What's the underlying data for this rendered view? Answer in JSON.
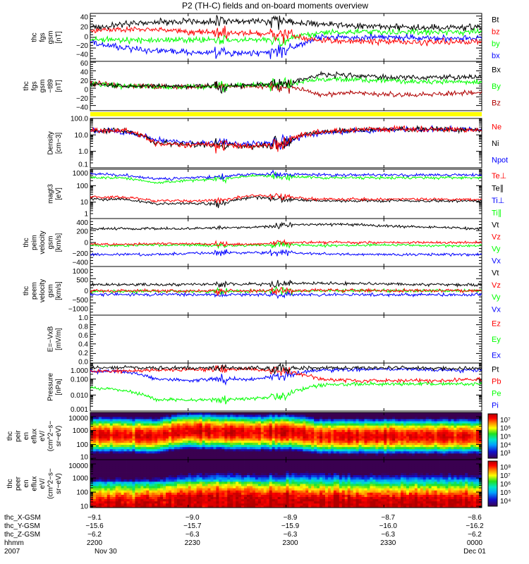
{
  "title": "P2 (TH-C) fields and on-board moments overview",
  "chart_data": {
    "type": "line",
    "title": "P2 (TH-C) fields and on-board moments overview",
    "x": {
      "unit": "minutes since 2200 UT",
      "range": [
        0,
        120
      ],
      "tick_values": [
        0,
        30,
        60,
        90,
        120
      ]
    },
    "panels": [
      {
        "id": "fgs",
        "ylabel": [
          "thc",
          "fgs",
          "gsm",
          "[nT]"
        ],
        "scale": "linear",
        "ylim": [
          -45,
          45
        ],
        "tick_values": [
          40,
          20,
          0,
          -20,
          -40
        ],
        "ticks": [
          "40",
          "20",
          "0",
          "−20",
          "−40"
        ],
        "noise": 4,
        "series": [
          {
            "name": "Bt",
            "color": "#000000",
            "values": [
              18,
              25,
              28,
              30,
              30,
              30,
              30,
              25,
              22,
              20,
              18,
              18,
              20
            ]
          },
          {
            "name": "bz",
            "color": "#ff0000",
            "values": [
              12,
              15,
              15,
              10,
              8,
              8,
              5,
              -5,
              -8,
              -8,
              -10,
              -8,
              -8
            ]
          },
          {
            "name": "by",
            "color": "#00ff00",
            "values": [
              -5,
              -5,
              -5,
              -5,
              -5,
              -5,
              -3,
              8,
              10,
              10,
              10,
              10,
              10
            ]
          },
          {
            "name": "bx",
            "color": "#0000ff",
            "values": [
              -10,
              -20,
              -25,
              -28,
              -30,
              -30,
              -25,
              0,
              0,
              0,
              0,
              -2,
              0
            ]
          }
        ]
      },
      {
        "id": "fgs-t89",
        "ylabel": [
          "thc",
          "fgs",
          "gsm",
          "−t89",
          "[nT]"
        ],
        "scale": "linear",
        "ylim": [
          -52,
          62
        ],
        "tick_values": [
          60,
          40,
          20,
          0,
          -20,
          -40
        ],
        "ticks": [
          "60",
          "40",
          "20",
          "0",
          "−20",
          "−40"
        ],
        "noise": 4,
        "series": [
          {
            "name": "Bx",
            "color": "#000000",
            "values": [
              10,
              5,
              5,
              5,
              5,
              8,
              10,
              30,
              30,
              25,
              25,
              25,
              25
            ]
          },
          {
            "name": "By",
            "color": "#00ff00",
            "values": [
              10,
              5,
              3,
              3,
              5,
              8,
              8,
              20,
              20,
              18,
              15,
              15,
              15
            ]
          },
          {
            "name": "Bz",
            "color": "#b00000",
            "values": [
              12,
              5,
              3,
              3,
              5,
              5,
              5,
              -15,
              -10,
              -15,
              -15,
              -12,
              -10
            ]
          }
        ]
      },
      {
        "id": "density",
        "ylabel": [
          "Density",
          "[cm−3]"
        ],
        "scale": "log",
        "ylim": [
          0.1,
          100
        ],
        "tick_values": [
          100,
          10,
          1,
          0.1
        ],
        "ticks": [
          "100.0",
          "10.0",
          "1.0",
          "0.1"
        ],
        "noise": 0.12,
        "series": [
          {
            "name": "Ne",
            "color": "#ff0000",
            "values": [
              20,
              18,
              3,
              2.5,
              2.5,
              2,
              3,
              15,
              20,
              22,
              22,
              22,
              20
            ]
          },
          {
            "name": "Ni",
            "color": "#000000",
            "values": [
              20,
              18,
              3,
              2.5,
              2.5,
              2,
              3,
              15,
              20,
              22,
              22,
              22,
              20
            ]
          },
          {
            "name": "Npot",
            "color": "#0000ff",
            "values": [
              20,
              15,
              5,
              3.5,
              3.2,
              3,
              3.5,
              12,
              18,
              20,
              22,
              22,
              20
            ]
          }
        ]
      },
      {
        "id": "temperature",
        "ylabel": [
          "magt3",
          "[eV]"
        ],
        "scale": "log",
        "ylim": [
          1,
          1000
        ],
        "tick_values": [
          1000,
          100,
          10,
          1
        ],
        "ticks": [
          "1000",
          "100",
          "10",
          "1"
        ],
        "noise": 0.06,
        "series": [
          {
            "name": "Te⊥",
            "color": "#ff0000",
            "values": [
              20,
              20,
              12,
              12,
              12,
              25,
              20,
              15,
              15,
              15,
              15,
              15,
              15
            ]
          },
          {
            "name": "Te∥",
            "color": "#000000",
            "values": [
              15,
              15,
              8,
              8,
              8,
              20,
              15,
              12,
              12,
              12,
              12,
              12,
              12
            ]
          },
          {
            "name": "Ti⊥",
            "color": "#0000ff",
            "values": [
              500,
              450,
              250,
              300,
              350,
              500,
              500,
              450,
              450,
              450,
              450,
              450,
              450
            ]
          },
          {
            "name": "Ti∥",
            "color": "#00ff00",
            "values": [
              300,
              300,
              150,
              200,
              250,
              400,
              350,
              300,
              300,
              300,
              300,
              300,
              300
            ]
          }
        ]
      },
      {
        "id": "peim-velocity",
        "ylabel": [
          "thc",
          "peim",
          "velocity",
          "gsm",
          "[km/s]"
        ],
        "scale": "linear",
        "ylim": [
          -400,
          400
        ],
        "tick_values": [
          400,
          200,
          0,
          -200,
          -400
        ],
        "ticks": [
          "400",
          "200",
          "0",
          "−200",
          "−400"
        ],
        "noise": 15,
        "series": [
          {
            "name": "Vt",
            "color": "#000000",
            "values": [
              230,
              230,
              230,
              230,
              250,
              250,
              300,
              300,
              300,
              280,
              260,
              250,
              230
            ]
          },
          {
            "name": "Vz",
            "color": "#ff0000",
            "values": [
              -30,
              -30,
              -20,
              -20,
              -30,
              -30,
              0,
              0,
              0,
              0,
              0,
              0,
              0
            ]
          },
          {
            "name": "Vy",
            "color": "#00ff00",
            "values": [
              -50,
              -50,
              -40,
              -40,
              -50,
              -50,
              -30,
              -50,
              -50,
              -40,
              -50,
              -60,
              -50
            ]
          },
          {
            "name": "Vx",
            "color": "#0000ff",
            "values": [
              -200,
              -200,
              -200,
              -180,
              -170,
              -170,
              -170,
              -190,
              -200,
              -200,
              -200,
              -200,
              -200
            ]
          }
        ]
      },
      {
        "id": "peem-velocity",
        "ylabel": [
          "thc",
          "peem",
          "velocity",
          "gsm",
          "[km/s]"
        ],
        "scale": "linear",
        "ylim": [
          -1000,
          1000
        ],
        "tick_values": [
          1000,
          500,
          0,
          -500,
          -1000
        ],
        "ticks": [
          "1000",
          "500",
          "0",
          "−500",
          "−1000"
        ],
        "noise": 45,
        "series": [
          {
            "name": "Vt",
            "color": "#000000",
            "values": [
              250,
              250,
              260,
              260,
              270,
              280,
              300,
              300,
              300,
              280,
              260,
              250,
              250
            ]
          },
          {
            "name": "Vz",
            "color": "#ff0000",
            "values": [
              0,
              0,
              0,
              0,
              0,
              0,
              20,
              20,
              20,
              10,
              10,
              10,
              10
            ]
          },
          {
            "name": "Vy",
            "color": "#00ff00",
            "values": [
              -20,
              -20,
              -20,
              -20,
              -20,
              -20,
              0,
              0,
              0,
              0,
              0,
              0,
              0
            ]
          },
          {
            "name": "Vx",
            "color": "#0000ff",
            "values": [
              -150,
              -150,
              -150,
              -150,
              -150,
              -150,
              -150,
              -160,
              -160,
              -160,
              -160,
              -160,
              -160
            ]
          }
        ]
      },
      {
        "id": "efield",
        "ylabel": [
          "E=−VxB",
          "[mV/m]"
        ],
        "scale": "linear",
        "ylim": [
          0,
          1
        ],
        "tick_values": [
          1,
          0.8,
          0.6,
          0.4,
          0.2,
          0
        ],
        "ticks": [
          "1.0",
          "0.8",
          "0.6",
          "0.4",
          "0.2",
          "0.0"
        ],
        "noise": 0,
        "series": [
          {
            "name": "Ez",
            "color": "#ff0000",
            "values": []
          },
          {
            "name": "Ey",
            "color": "#00ff00",
            "values": []
          },
          {
            "name": "Ex",
            "color": "#0000ff",
            "values": []
          }
        ]
      },
      {
        "id": "pressure",
        "ylabel": [
          "Pressure",
          "[nPa]"
        ],
        "scale": "log",
        "ylim": [
          0.001,
          1
        ],
        "tick_values": [
          1,
          0.1,
          0.01,
          0.001
        ],
        "ticks": [
          "1.000",
          "0.100",
          "0.010",
          "0.001"
        ],
        "noise": 0.08,
        "series": [
          {
            "name": "Pt",
            "color": "#000000",
            "values": [
              0.5,
              0.5,
              0.5,
              0.5,
              0.5,
              0.5,
              0.5,
              0.5,
              0.5,
              0.5,
              0.5,
              0.45,
              0.45
            ]
          },
          {
            "name": "Pb",
            "color": "#ff0000",
            "values": [
              0.3,
              0.3,
              0.35,
              0.4,
              0.4,
              0.4,
              0.3,
              0.1,
              0.08,
              0.08,
              0.08,
              0.08,
              0.1
            ]
          },
          {
            "name": "Pe",
            "color": "#00ff00",
            "values": [
              0.03,
              0.02,
              0.005,
              0.005,
              0.005,
              0.006,
              0.008,
              0.04,
              0.05,
              0.05,
              0.05,
              0.05,
              0.05
            ]
          },
          {
            "name": "Pi",
            "color": "#0000ff",
            "values": [
              0.3,
              0.3,
              0.1,
              0.08,
              0.1,
              0.1,
              0.15,
              0.35,
              0.4,
              0.4,
              0.4,
              0.35,
              0.35
            ]
          }
        ]
      }
    ],
    "spectrograms": [
      {
        "id": "peir",
        "type": "heatmap",
        "ylabel": [
          "thc",
          "peir",
          "en",
          "eflux",
          "eV/",
          "(cm^2−s−",
          "sr−eV)"
        ],
        "scale": "log",
        "ylim": [
          8,
          20000
        ],
        "tick_values": [
          10000,
          1000,
          100,
          10
        ],
        "ticks": [
          "10000",
          "1000",
          "100",
          "10"
        ],
        "peak_energy_eV": [
          500,
          500,
          400,
          1000,
          800,
          700,
          800,
          400,
          400,
          400,
          400,
          400,
          400
        ],
        "colorbar": {
          "ticks": [
            "10⁷",
            "10⁶",
            "10⁵",
            "10⁴",
            "10³"
          ],
          "range_log": [
            2.5,
            7.3
          ]
        }
      },
      {
        "id": "peer",
        "type": "heatmap",
        "ylabel": [
          "thc",
          "peer",
          "en",
          "eflux",
          "eV/",
          "(cm^2−s−",
          "sr−eV)"
        ],
        "scale": "log",
        "ylim": [
          8,
          20000
        ],
        "tick_values": [
          10000,
          1000,
          100,
          10
        ],
        "ticks": [
          "10000",
          "1000",
          "100",
          "10"
        ],
        "peak_energy_eV": [
          15,
          15,
          15,
          30,
          40,
          30,
          30,
          25,
          20,
          20,
          20,
          20,
          20
        ],
        "colorbar": {
          "ticks": [
            "10⁸",
            "10⁷",
            "10⁶",
            "10⁵",
            "10⁴"
          ],
          "range_log": [
            3.5,
            8.3
          ]
        }
      }
    ]
  },
  "ephemeris": {
    "labels": [
      "thc_X-GSM",
      "thc_Y-GSM",
      "thc_Z-GSM",
      "hhmm",
      "2007"
    ],
    "columns": [
      [
        "−9.1",
        "−15.6",
        "−6.2",
        "2200",
        "Nov 30"
      ],
      [
        "−9.0",
        "−15.7",
        "−6.3",
        "2230",
        ""
      ],
      [
        "−8.9",
        "−15.9",
        "−6.3",
        "2300",
        ""
      ],
      [
        "−8.7",
        "−16.0",
        "−6.3",
        "2330",
        ""
      ],
      [
        "−8.6",
        "−16.2",
        "−6.2",
        "0000",
        "Dec 01"
      ]
    ]
  }
}
